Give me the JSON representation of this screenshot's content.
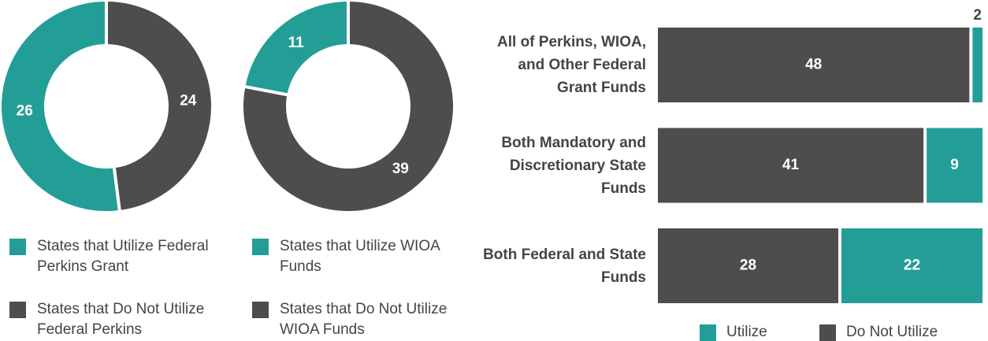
{
  "chart_data": [
    {
      "type": "donut",
      "categories": [
        "States that Utilize Federal Perkins Grant",
        "States that Do Not Utilize Federal Perkins"
      ],
      "values": [
        26,
        24
      ],
      "colors": [
        "#239e96",
        "#4d4d4d"
      ]
    },
    {
      "type": "donut",
      "categories": [
        "States that Utilize WIOA Funds",
        "States that Do Not Utilize WIOA Funds"
      ],
      "values": [
        11,
        39
      ],
      "colors": [
        "#239e96",
        "#4d4d4d"
      ]
    },
    {
      "type": "stacked_barh",
      "categories": [
        "All of Perkins, WIOA, and Other Federal Grant Funds",
        "Both Mandatory and Discretionary State Funds",
        "Both Federal and State Funds"
      ],
      "series": [
        {
          "name": "Utilize",
          "color": "#239e96",
          "values": [
            2,
            9,
            22
          ]
        },
        {
          "name": "Do Not Utilize",
          "color": "#4d4d4d",
          "values": [
            48,
            41,
            28
          ]
        }
      ],
      "xlim": [
        0,
        50
      ]
    }
  ]
}
